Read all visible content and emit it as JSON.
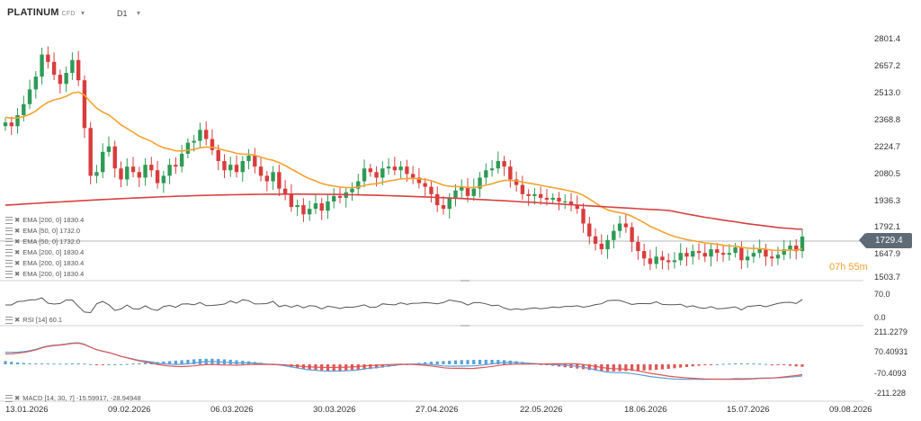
{
  "symbol": {
    "name": "PLATINUM",
    "source": "CFD",
    "timeframe": "D1"
  },
  "price_axis": [
    "2801.4",
    "2657.2",
    "2513.0",
    "2368.8",
    "2224.7",
    "2080.5",
    "1936.3",
    "1792.1",
    "1647.9",
    "1503.7"
  ],
  "current_price": "1729.4",
  "timer": {
    "hours": "07h",
    "minutes": "55m"
  },
  "indicators": [
    "EMA [200, 0] 1830.4",
    "EMA [50, 0] 1732.0",
    "EMA [50, 0] 1732.0",
    "EMA [200, 0] 1830.4",
    "EMA [200, 0] 1830.4",
    "EMA [200, 0] 1830.4"
  ],
  "rsi": {
    "label": "RSI [14] 60.1",
    "axis": [
      "70.0",
      "0.0"
    ]
  },
  "macd": {
    "label": "MACD [14, 30, 7] -15.59917, -28.94948",
    "axis": [
      "211.2279",
      "70.40931",
      "-70.4093",
      "-211.228"
    ]
  },
  "x_axis": [
    "13.01.2026",
    "09.02.2026",
    "06.03.2026",
    "30.03.2026",
    "27.04.2026",
    "22.05.2026",
    "18.06.2026",
    "15.07.2026",
    "09.08.2026"
  ],
  "colors": {
    "up": "#2e9a56",
    "down": "#d93c3c",
    "ema50": "#f5a22e",
    "ema200": "#d94040",
    "rsi": "#555555",
    "macd_signal": "#e05555",
    "macd_line": "#5aa0d8"
  }
}
